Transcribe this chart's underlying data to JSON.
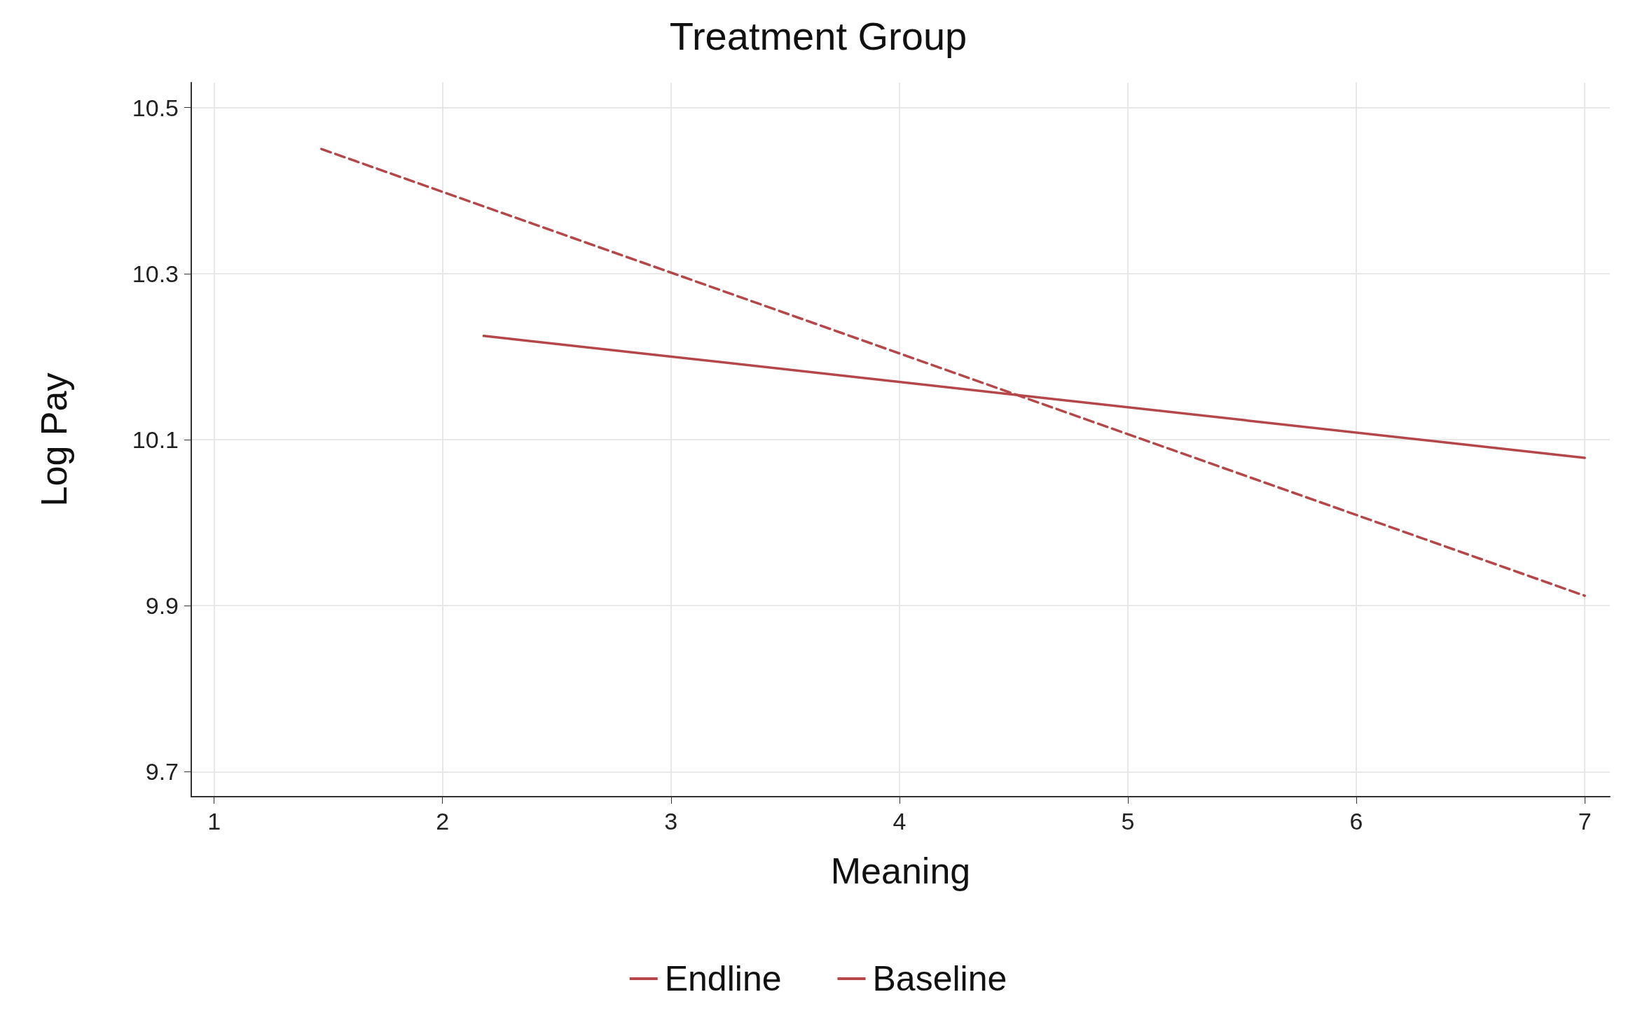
{
  "chart_data": {
    "type": "line",
    "title": "Treatment Group",
    "xlabel": "Meaning",
    "ylabel": "Log Pay",
    "series": [
      {
        "name": "Endline",
        "color": "#b5474b",
        "x": [
          2.18,
          7
        ],
        "values": [
          10.225,
          10.078
        ],
        "line_style": "solid"
      },
      {
        "name": "Baseline",
        "color": "#b5474b",
        "x": [
          1.47,
          7
        ],
        "values": [
          10.45,
          9.912
        ],
        "line_style": "dashed"
      }
    ],
    "xlim": [
      0.9,
      7.11
    ],
    "xticks": [
      1,
      2,
      3,
      4,
      5,
      6,
      7
    ],
    "ylim": [
      9.67,
      10.53
    ],
    "yticks": [
      9.7,
      9.9,
      10.1,
      10.3,
      10.5
    ],
    "grid": true,
    "legend": "bottom",
    "marker": "none"
  }
}
